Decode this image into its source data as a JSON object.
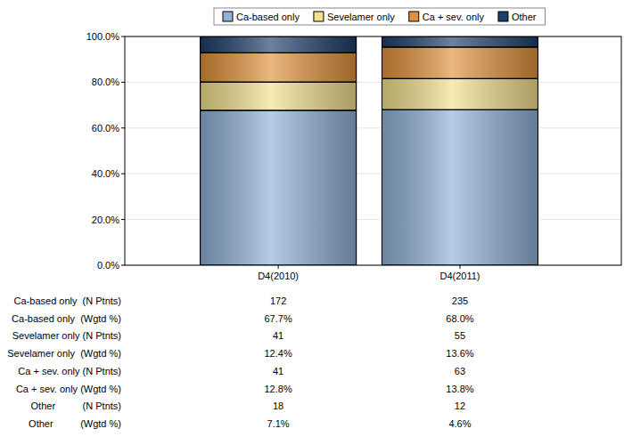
{
  "chart_data": {
    "type": "bar",
    "stacked": true,
    "grid": true,
    "legend": "top",
    "categories": [
      "D4(2010)",
      "D4(2011)"
    ],
    "ylim": [
      0,
      100
    ],
    "yticks": [
      {
        "value": 0,
        "label": "0.0%"
      },
      {
        "value": 20,
        "label": "20.0%"
      },
      {
        "value": 40,
        "label": "40.0%"
      },
      {
        "value": 60,
        "label": "60.0%"
      },
      {
        "value": 80,
        "label": "80.0%"
      },
      {
        "value": 100,
        "label": "100.0%"
      }
    ],
    "series": [
      {
        "name": "Ca-based only",
        "color": "#8fb1d6",
        "values": [
          67.7,
          68.0
        ],
        "value_labels": [
          "67.7%",
          "68.0%"
        ],
        "n": [
          172,
          235
        ],
        "n_label": "Ca-based only  (N Ptnts)",
        "pct_label": "Ca-based only  (Wgtd %)"
      },
      {
        "name": "Sevelamer only",
        "color": "#f2e08e",
        "values": [
          12.4,
          13.6
        ],
        "value_labels": [
          "12.4%",
          "13.6%"
        ],
        "n": [
          41,
          55
        ],
        "n_label": "Sevelamer only (N Ptnts)",
        "pct_label": "Sevelamer only  (Wgtd %)"
      },
      {
        "name": "Ca + sev. only",
        "color": "#e0913a",
        "values": [
          12.8,
          13.8
        ],
        "value_labels": [
          "12.8%",
          "13.8%"
        ],
        "n": [
          41,
          63
        ],
        "n_label": "Ca + sev. only (N Ptnts)",
        "pct_label": "Ca + sev. only (Wgtd %)"
      },
      {
        "name": "Other",
        "color": "#1d3e6b",
        "values": [
          7.1,
          4.6
        ],
        "value_labels": [
          "7.1%",
          "4.6%"
        ],
        "n": [
          18,
          12
        ],
        "n_label": "Other          (N Ptnts)",
        "pct_label": "Other          (Wgtd %)"
      }
    ]
  }
}
